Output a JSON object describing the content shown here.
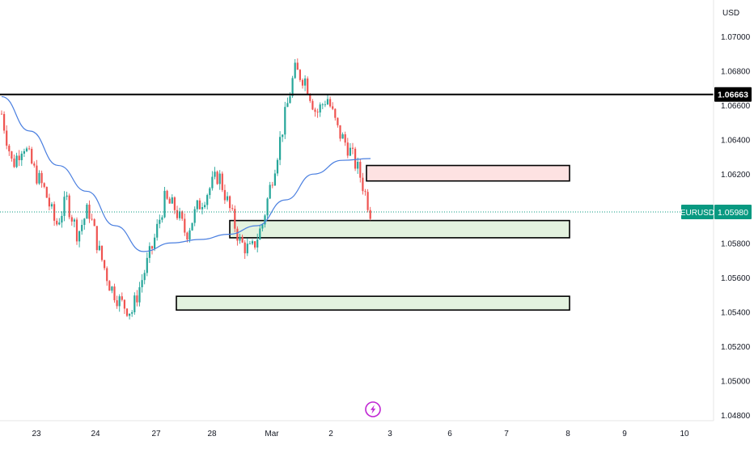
{
  "chart_data": {
    "type": "candlestick",
    "symbol": "EURUSD",
    "currency": "USD",
    "last_price": "1.05980",
    "ylim": [
      1.0474,
      1.0713
    ],
    "grid": false,
    "x_ticks": [
      "23",
      "24",
      "27",
      "28",
      "Mar",
      "2",
      "3",
      "6",
      "7",
      "8",
      "9",
      "10"
    ],
    "y_ticks": [
      "1.07000",
      "1.06800",
      "1.06600",
      "1.06400",
      "1.06200",
      "1.06000",
      "1.05800",
      "1.05600",
      "1.05400",
      "1.05200",
      "1.05000",
      "1.04800"
    ],
    "y_tick_values": [
      1.07,
      1.068,
      1.066,
      1.064,
      1.062,
      1.06,
      1.058,
      1.056,
      1.054,
      1.052,
      1.05,
      1.048
    ],
    "horizontal_line": {
      "value": 1.06663,
      "label": "1.06663",
      "color": "#000000"
    },
    "zones": [
      {
        "name": "supply-zone",
        "from": "2",
        "to": "8",
        "top": 1.0625,
        "bottom": 1.0616,
        "fill": "#fde2e2"
      },
      {
        "name": "demand-zone-upper",
        "from": "28",
        "to": "8",
        "top": 1.0593,
        "bottom": 1.0583,
        "fill": "#e3f2df"
      },
      {
        "name": "demand-zone-lower",
        "from": "27",
        "to": "8",
        "top": 1.0549,
        "bottom": 1.0541,
        "fill": "#e3f2df"
      }
    ],
    "price_path": [
      [
        "23",
        1.0655
      ],
      [
        "23",
        1.0625
      ],
      [
        "23",
        1.0638
      ],
      [
        "23",
        1.0622
      ],
      [
        "24",
        1.061
      ],
      [
        "24",
        1.059
      ],
      [
        "24",
        1.0605
      ],
      [
        "24",
        1.0585
      ],
      [
        "24",
        1.06
      ],
      [
        "27",
        1.0575
      ],
      [
        "27",
        1.0555
      ],
      [
        "27",
        1.0545
      ],
      [
        "27",
        1.054
      ],
      [
        "27",
        1.056
      ],
      [
        "27",
        1.058
      ],
      [
        "28",
        1.0605
      ],
      [
        "28",
        1.06
      ],
      [
        "28",
        1.0585
      ],
      [
        "28",
        1.06
      ],
      [
        "28",
        1.061
      ],
      [
        "28",
        1.062
      ],
      [
        "Mar",
        1.06
      ],
      [
        "Mar",
        1.058
      ],
      [
        "Mar",
        1.0575
      ],
      [
        "Mar",
        1.059
      ],
      [
        "Mar",
        1.062
      ],
      [
        "Mar",
        1.065
      ],
      [
        "2",
        1.068
      ],
      [
        "2",
        1.0675
      ],
      [
        "2",
        1.0655
      ],
      [
        "2",
        1.0665
      ],
      [
        "2",
        1.0645
      ],
      [
        "2",
        1.0635
      ],
      [
        "3",
        1.062
      ],
      [
        "3",
        1.0598
      ]
    ],
    "moving_average": [
      [
        "23",
        1.0665
      ],
      [
        "23",
        1.0645
      ],
      [
        "24",
        1.0625
      ],
      [
        "24",
        1.061
      ],
      [
        "27",
        1.059
      ],
      [
        "27",
        1.0575
      ],
      [
        "28",
        1.058
      ],
      [
        "28",
        1.0582
      ],
      [
        "Mar",
        1.0585
      ],
      [
        "Mar",
        1.059
      ],
      [
        "Mar",
        1.0605
      ],
      [
        "2",
        1.062
      ],
      [
        "2",
        1.0628
      ],
      [
        "3",
        1.0629
      ]
    ],
    "colors": {
      "up": "#26a69a",
      "down": "#ef5350",
      "ma": "#4a7fe0",
      "last_price": "#089981"
    }
  }
}
